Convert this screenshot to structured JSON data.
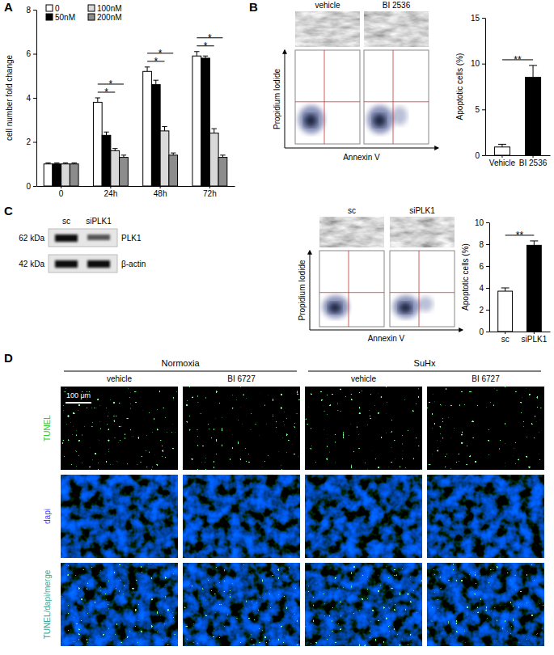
{
  "panel_labels": [
    "A",
    "B",
    "C",
    "D"
  ],
  "chart_data": [
    {
      "type": "bar",
      "categories": [
        "0",
        "24h",
        "48h",
        "72h"
      ],
      "y_label": "cell number fold change",
      "series": [
        {
          "name": "0",
          "color": "#ffffff",
          "values": [
            1,
            3.8,
            5.2,
            5.9
          ],
          "errors": [
            0.05,
            0.2,
            0.2,
            0.2
          ]
        },
        {
          "name": "50nM",
          "color": "#000000",
          "values": [
            1,
            2.3,
            4.6,
            5.8
          ],
          "errors": [
            0.05,
            0.15,
            0.2,
            0.1
          ]
        },
        {
          "name": "100nM",
          "color": "#d9d9d9",
          "values": [
            1,
            1.6,
            2.5,
            2.4
          ],
          "errors": [
            0.05,
            0.1,
            0.2,
            0.2
          ]
        },
        {
          "name": "200nM",
          "color": "#8c8c8c",
          "values": [
            1,
            1.3,
            1.4,
            1.3
          ],
          "errors": [
            0.05,
            0.1,
            0.1,
            0.1
          ]
        }
      ],
      "ylim": [
        0,
        8
      ],
      "yticks": [
        0,
        2,
        4,
        6,
        8
      ],
      "legend": "top-left",
      "annotations": [
        {
          "category": "24h",
          "from": "0",
          "to": "100nM",
          "text": "*"
        },
        {
          "category": "24h",
          "from": "0",
          "to": "200nM",
          "text": "*"
        },
        {
          "category": "48h",
          "from": "0",
          "to": "100nM",
          "text": "*"
        },
        {
          "category": "48h",
          "from": "0",
          "to": "200nM",
          "text": "*"
        },
        {
          "category": "72h",
          "from": "0",
          "to": "100nM",
          "text": "*"
        },
        {
          "category": "72h",
          "from": "0",
          "to": "200nM",
          "text": "*"
        }
      ]
    },
    {
      "type": "bar",
      "categories": [
        "Vehicle",
        "BI 2536"
      ],
      "y_label": "Apoptotic cells (%)",
      "values": [
        0.9,
        8.5
      ],
      "errors": [
        0.3,
        1.3
      ],
      "colors": [
        "#ffffff",
        "#000000"
      ],
      "ylim": [
        0,
        15
      ],
      "yticks": [
        0,
        5,
        10,
        15
      ],
      "annotations": [
        {
          "from": "Vehicle",
          "to": "BI 2536",
          "text": "**"
        }
      ]
    },
    {
      "type": "bar",
      "categories": [
        "sc",
        "siPLK1"
      ],
      "y_label": "Apoptotic cells (%)",
      "values": [
        3.7,
        7.9
      ],
      "errors": [
        0.3,
        0.4
      ],
      "colors": [
        "#ffffff",
        "#000000"
      ],
      "ylim": [
        0,
        10
      ],
      "yticks": [
        0,
        2,
        4,
        6,
        8,
        10
      ],
      "annotations": [
        {
          "from": "sc",
          "to": "siPLK1",
          "text": "**"
        }
      ]
    }
  ],
  "panel_b": {
    "image_labels": [
      "vehicle",
      "BI 2536"
    ],
    "y_axis": "Propidium Iodide",
    "x_axis": "Annexin V"
  },
  "panel_c": {
    "blot": {
      "lanes": [
        "sc",
        "siPLK1"
      ],
      "rows": [
        {
          "size": "62 kDa",
          "protein": "PLK1"
        },
        {
          "size": "42 kDa",
          "protein": "β-actin"
        }
      ]
    },
    "image_labels": [
      "sc",
      "siPLK1"
    ],
    "y_axis": "Propidium Iodide",
    "x_axis": "Annexin V"
  },
  "panel_d": {
    "groups": [
      {
        "name": "Normoxia",
        "columns": [
          "vehicle",
          "BI 6727"
        ]
      },
      {
        "name": "SuHx",
        "columns": [
          "vehicle",
          "BI 6727"
        ]
      }
    ],
    "rows": [
      "TUNEL",
      "dapi",
      "TUNEL/dapi/merge"
    ],
    "scale_bar": "100 μm"
  }
}
